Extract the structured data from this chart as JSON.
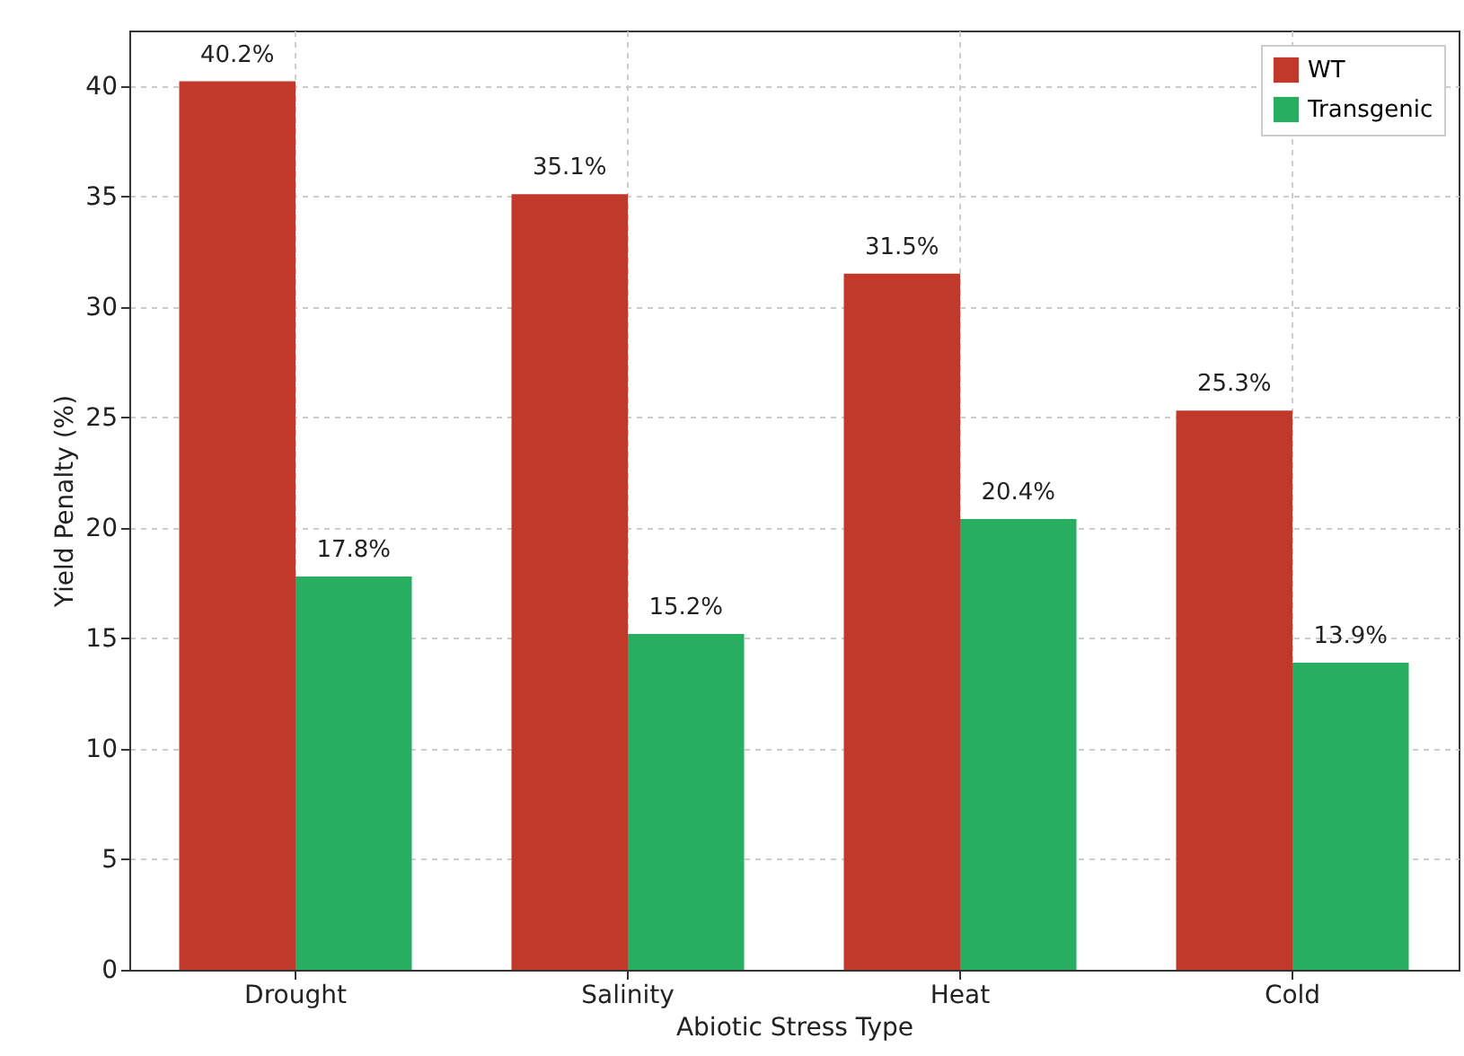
{
  "chart_data": {
    "type": "bar",
    "xlabel": "Abiotic Stress Type",
    "ylabel": "Yield Penalty (%)",
    "categories": [
      "Drought",
      "Salinity",
      "Heat",
      "Cold"
    ],
    "series": [
      {
        "name": "WT",
        "color": "#c0392b",
        "values": [
          40.2,
          35.1,
          31.5,
          25.3
        ],
        "value_labels": [
          "40.2%",
          "35.1%",
          "31.5%",
          "25.3%"
        ]
      },
      {
        "name": "Transgenic",
        "color": "#27ae60",
        "values": [
          17.8,
          15.2,
          20.4,
          13.9
        ],
        "value_labels": [
          "17.8%",
          "15.2%",
          "20.4%",
          "13.9%"
        ]
      }
    ],
    "ylim": [
      0,
      42.5
    ],
    "yticks": [
      0,
      5,
      10,
      15,
      20,
      25,
      30,
      35,
      40
    ],
    "grid": true,
    "legend": "top right"
  }
}
